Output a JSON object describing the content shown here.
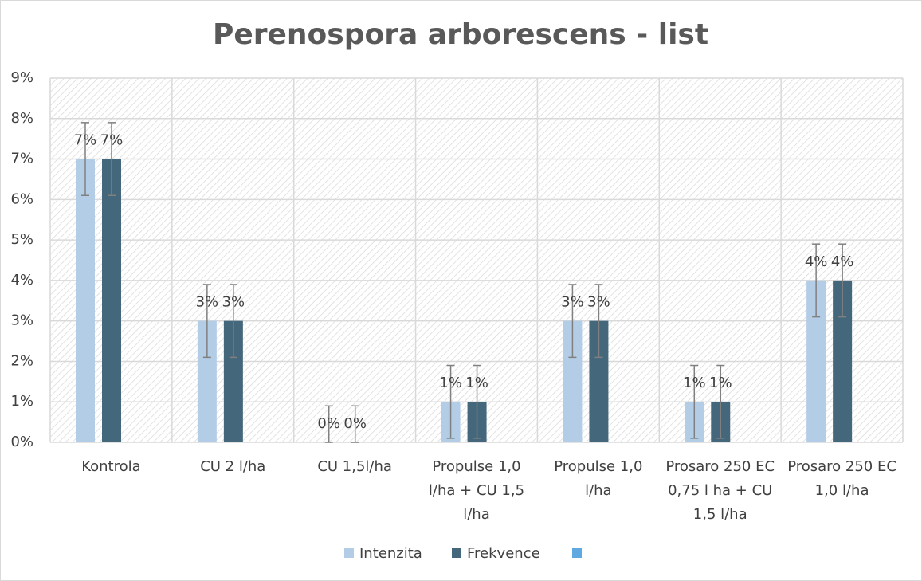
{
  "chart_data": {
    "type": "bar",
    "title": "Perenospora arborescens - list",
    "categories": [
      "Kontrola",
      "CU 2 l/ha",
      "CU 1,5l/ha",
      "Propulse 1,0 l/ha + CU 1,5 l/ha",
      "Propulse 1,0 l/ha",
      "Prosaro 250 EC 0,75 l ha + CU 1,5 l/ha",
      "Prosaro 250 EC 1,0 l/ha"
    ],
    "series": [
      {
        "name": "Intenzita",
        "color": "#b4cde6",
        "values": [
          7,
          3,
          0,
          1,
          3,
          1,
          4
        ],
        "value_labels": [
          "7%",
          "3%",
          "0%",
          "1%",
          "3%",
          "1%",
          "4%"
        ],
        "errors": [
          0.9,
          0.9,
          0.9,
          0.9,
          0.9,
          0.9,
          0.9
        ]
      },
      {
        "name": "Frekvence",
        "color": "#44677b",
        "values": [
          7,
          3,
          0,
          1,
          3,
          1,
          4
        ],
        "value_labels": [
          "7%",
          "3%",
          "0%",
          "1%",
          "3%",
          "1%",
          "4%"
        ],
        "errors": [
          0.9,
          0.9,
          0.9,
          0.9,
          0.9,
          0.9,
          0.9
        ]
      },
      {
        "color": "#5fa9e0",
        "values": [
          null,
          null,
          null,
          null,
          null,
          null,
          null
        ]
      }
    ],
    "ylim": [
      0,
      9
    ],
    "yticks": [
      {
        "value": 0,
        "label": "0%"
      },
      {
        "value": 1,
        "label": "1%"
      },
      {
        "value": 2,
        "label": "2%"
      },
      {
        "value": 3,
        "label": "3%"
      },
      {
        "value": 4,
        "label": "4%"
      },
      {
        "value": 5,
        "label": "5%"
      },
      {
        "value": 6,
        "label": "6%"
      },
      {
        "value": 7,
        "label": "7%"
      },
      {
        "value": 8,
        "label": "8%"
      },
      {
        "value": 9,
        "label": "9%"
      }
    ],
    "grid": true,
    "legend": "bottom"
  }
}
